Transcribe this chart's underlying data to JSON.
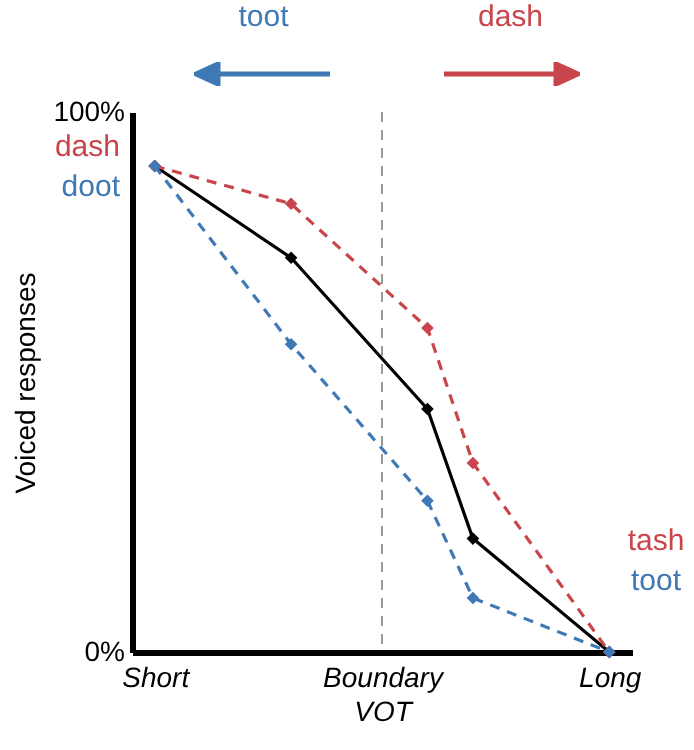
{
  "chart_data": {
    "type": "line",
    "ylabel": "Voiced responses",
    "categories": [
      "Short",
      null,
      null,
      null,
      null,
      "Boundary VOT",
      null,
      null,
      null,
      null,
      "Long"
    ],
    "ylim": [
      0,
      100
    ],
    "yticks": [
      {
        "value": 0,
        "label": "0%"
      },
      {
        "value": 100,
        "label": "100%"
      }
    ],
    "ref_lines": [
      {
        "axis": "x",
        "value": "Boundary VOT",
        "color": "#999999",
        "line_style": "dashed"
      }
    ],
    "series": [
      {
        "color": "#000000",
        "line_style": "solid",
        "values": [
          90,
          null,
          null,
          73,
          null,
          null,
          45,
          21,
          null,
          null,
          0
        ]
      },
      {
        "name": "dash",
        "color": "#c8464b",
        "line_style": "dashed",
        "values": [
          90,
          null,
          null,
          83,
          null,
          null,
          60,
          35,
          null,
          null,
          0
        ]
      },
      {
        "name": "doot",
        "color": "#3f79b5",
        "line_style": "dashed",
        "values": [
          90,
          null,
          null,
          57,
          null,
          null,
          28,
          10,
          null,
          null,
          0
        ]
      }
    ],
    "annotations": [
      "toot",
      "dash",
      "tash",
      "toot"
    ],
    "marker": "diamond",
    "grid": false
  }
}
